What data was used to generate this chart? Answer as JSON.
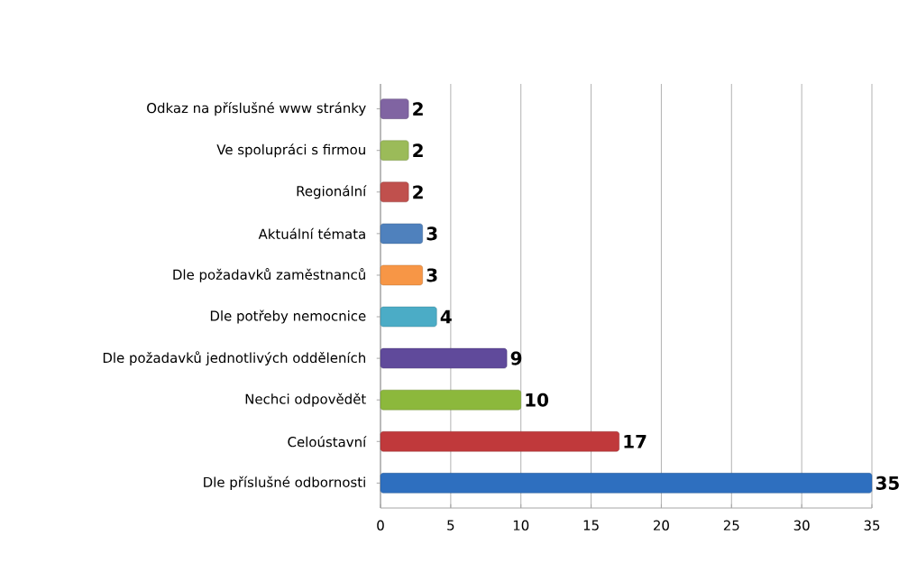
{
  "chart_data": {
    "type": "bar",
    "orientation": "horizontal",
    "categories": [
      "Odkaz na příslušné www stránky",
      "Ve spolupráci s firmou",
      "Regionální",
      "Aktuální témata",
      "Dle požadavků zaměstnanců",
      "Dle potřeby nemocnice",
      "Dle požadavků jednotlivých odděleních",
      "Nechci odpovědět",
      "Celoústavní",
      "Dle příslušné odbornosti"
    ],
    "values": [
      2,
      2,
      2,
      3,
      3,
      4,
      9,
      10,
      17,
      35
    ],
    "colors": [
      "#8064a2",
      "#9bbb59",
      "#c0504d",
      "#4f81bd",
      "#f79646",
      "#4bacc6",
      "#604a9b",
      "#8cb83c",
      "#c0393b",
      "#2e6fbf"
    ],
    "xlim": [
      0,
      35
    ],
    "xticks": [
      0,
      5,
      10,
      15,
      20,
      25,
      30,
      35
    ],
    "grid": "x",
    "data_labels": true
  }
}
